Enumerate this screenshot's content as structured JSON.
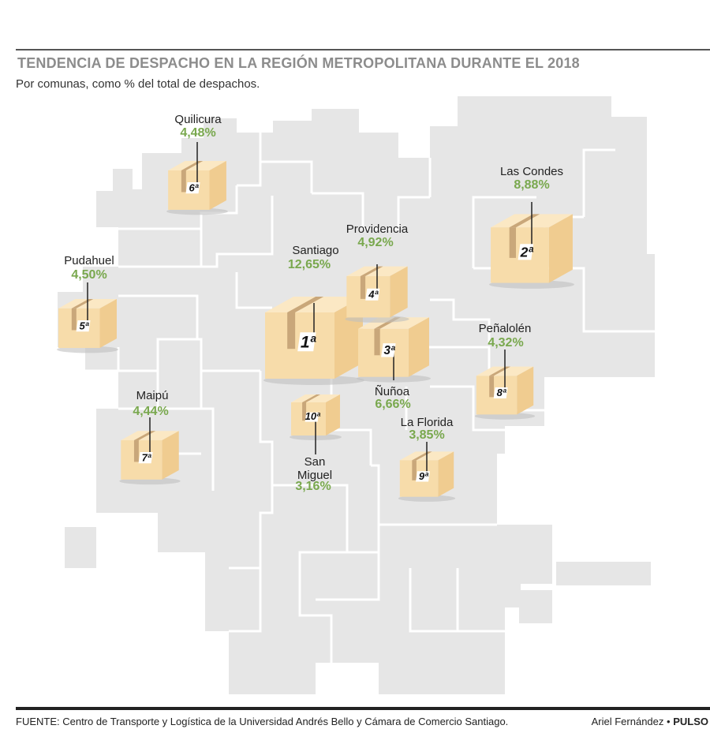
{
  "header": {
    "title": "TENDENCIA DE DESPACHO EN LA REGIÓN METROPOLITANA DURANTE EL 2018",
    "subtitle": "Por comunas, como % del total de despachos."
  },
  "map": {
    "region_color": "#e6e6e6",
    "border_color": "#ffffff",
    "box_front": "#f7dcaa",
    "box_side": "#f0cc90",
    "box_top": "#fbe8c4",
    "box_tape": "#c9a77a",
    "comunas": [
      {
        "name": "Santiago",
        "percent": "12,65%",
        "rank": "1ª",
        "value": 12.65
      },
      {
        "name": "Las Condes",
        "percent": "8,88%",
        "rank": "2ª",
        "value": 8.88
      },
      {
        "name": "Ñuñoa",
        "percent": "6,66%",
        "rank": "3ª",
        "value": 6.66
      },
      {
        "name": "Providencia",
        "percent": "4,92%",
        "rank": "4ª",
        "value": 4.92
      },
      {
        "name": "Pudahuel",
        "percent": "4,50%",
        "rank": "5ª",
        "value": 4.5
      },
      {
        "name": "Quilicura",
        "percent": "4,48%",
        "rank": "6ª",
        "value": 4.48
      },
      {
        "name": "Maipú",
        "percent": "4,44%",
        "rank": "7ª",
        "value": 4.44
      },
      {
        "name": "Peñalolén",
        "percent": "4,32%",
        "rank": "8ª",
        "value": 4.32
      },
      {
        "name": "La Florida",
        "percent": "3,85%",
        "rank": "9ª",
        "value": 3.85
      },
      {
        "name": "San\nMiguel",
        "percent": "3,16%",
        "rank": "10ª",
        "value": 3.16
      }
    ]
  },
  "footer": {
    "source": "FUENTE: Centro de Transporte y Logística de la Universidad Andrés Bello y Cámara de Comercio Santiago.",
    "author": "Ariel Fernández",
    "separator": "•",
    "outlet": "PULSO"
  }
}
